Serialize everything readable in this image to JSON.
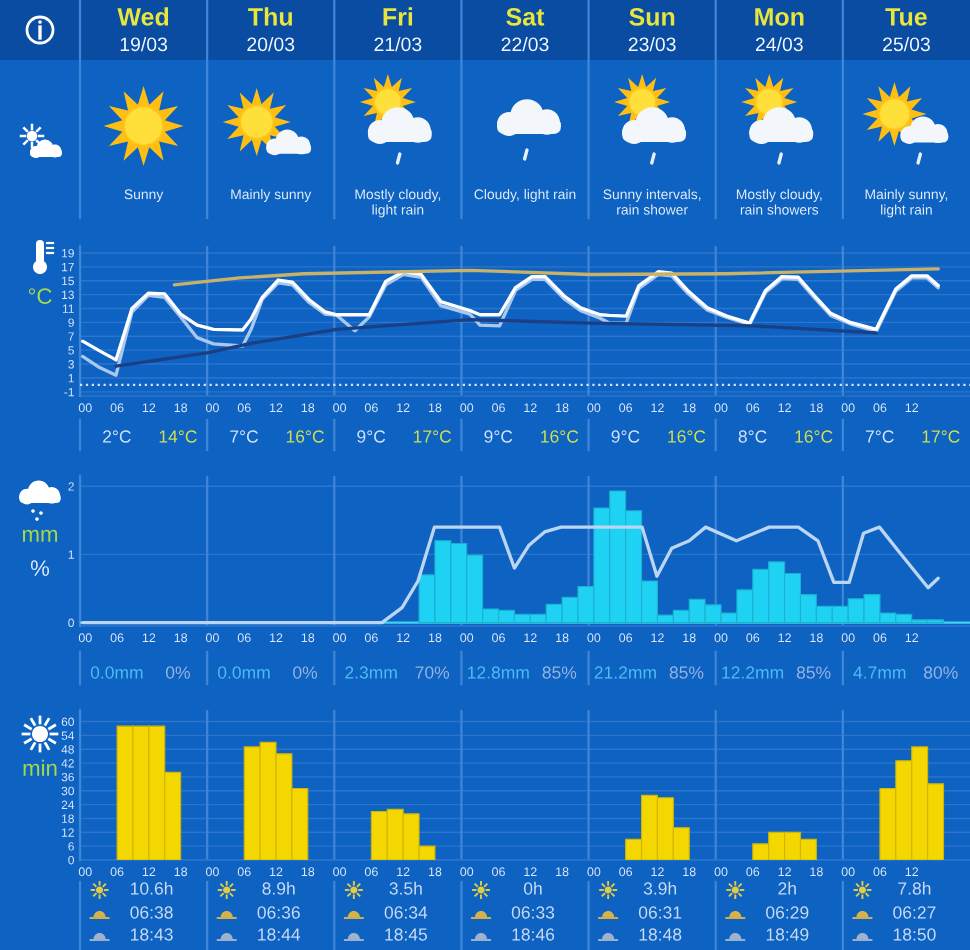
{
  "chart_data": [
    {
      "type": "other",
      "categories": [
        "Wed",
        "Thu",
        "Fri",
        "Sat",
        "Sun",
        "Mon",
        "Tue"
      ],
      "annotations": [
        "19/03",
        "20/03",
        "21/03",
        "22/03",
        "23/03",
        "24/03",
        "25/03",
        "Sunny",
        "Mainly sunny",
        "Mostly cloudy, light rain",
        "Cloudy, light rain",
        "Sunny intervals, rain shower",
        "Mostly cloudy, rain showers",
        "Mainly sunny, light rain"
      ]
    },
    {
      "type": "line",
      "ylabel": "°C",
      "x": [
        -0.5,
        2.7,
        5.8,
        8.8,
        11.9,
        15,
        18,
        21.1,
        24.2,
        29.7,
        31.3,
        33.4,
        36.4,
        39.1,
        42.2,
        45.3,
        47.5,
        50.9,
        53.6,
        56.7,
        60,
        63.4,
        67.1,
        72.6,
        74.5,
        78.2,
        81.2,
        84.3,
        86.8,
        90.4,
        93.5,
        97.2,
        98.9,
        102.1,
        104.5,
        108.2,
        110.7,
        113.7,
        117.4,
        121.1,
        125.4,
        128.4,
        131.5,
        134.6,
        137.7,
        140.7,
        144.4,
        149.3,
        153,
        156,
        158.9,
        161
      ],
      "series": [
        {
          "color": "#a9c8ef",
          "values": [
            4.1,
            2.5,
            1.4,
            10.5,
            12.9,
            12.6,
            9.8,
            6.8,
            5.9,
            5.6,
            8.0,
            12.3,
            14.7,
            14.4,
            11.9,
            10.2,
            10.0,
            7.8,
            9.8,
            14.4,
            15.9,
            15.5,
            11.4,
            10.2,
            8.6,
            8.5,
            13.6,
            15.2,
            15.2,
            12.4,
            10.7,
            9.6,
            8.9,
            8.9,
            13.9,
            15.9,
            15.7,
            13.2,
            10.8,
            9.7,
            8.7,
            13.3,
            15.3,
            15.2,
            12.5,
            10.0,
            8.8,
            7.7,
            13.5,
            15.4,
            15.4,
            14.0
          ]
        },
        {
          "color": "#ffffff",
          "values": [
            6.3,
            4.9,
            3.6,
            11.0,
            13.2,
            13.1,
            10.2,
            8.6,
            8.0,
            7.9,
            9.5,
            12.6,
            15.1,
            14.8,
            12.3,
            10.5,
            10.1,
            10.1,
            10.1,
            14.9,
            16.3,
            15.9,
            12.0,
            10.7,
            10.1,
            10.1,
            14.0,
            15.6,
            15.6,
            12.8,
            11.1,
            10.1,
            10.0,
            9.9,
            14.3,
            16.3,
            16.1,
            13.6,
            11.1,
            9.9,
            8.9,
            13.6,
            15.6,
            15.5,
            12.8,
            10.3,
            9.0,
            8.0,
            13.8,
            15.7,
            15.7,
            14.3
          ]
        },
        {
          "color": "#c8b26a",
          "x": [
            16.8,
            29.1,
            41.3,
            72.6,
            95.3,
            120.8,
            161
          ],
          "values": [
            14.4,
            15.4,
            16.0,
            16.5,
            15.9,
            16.0,
            16.7
          ]
        },
        {
          "color": "#1b3f85",
          "x": [
            5.8,
            23,
            31.5,
            47.5,
            72.6,
            95.3,
            126,
            149.3
          ],
          "values": [
            2.7,
            4.6,
            6.0,
            8.0,
            9.4,
            8.9,
            8.5,
            7.5
          ]
        }
      ],
      "xlim": [
        -1,
        167
      ],
      "ylim": [
        -1.6,
        20
      ],
      "xticks": [
        {
          "value": 0,
          "label": "00"
        },
        {
          "value": 6,
          "label": "06"
        },
        {
          "value": 12,
          "label": "12"
        },
        {
          "value": 18,
          "label": "18"
        },
        {
          "value": 24,
          "label": "00"
        },
        {
          "value": 30,
          "label": "06"
        },
        {
          "value": 36,
          "label": "12"
        },
        {
          "value": 42,
          "label": "18"
        },
        {
          "value": 48,
          "label": "00"
        },
        {
          "value": 54,
          "label": "06"
        },
        {
          "value": 60,
          "label": "12"
        },
        {
          "value": 66,
          "label": "18"
        },
        {
          "value": 72,
          "label": "00"
        },
        {
          "value": 78,
          "label": "06"
        },
        {
          "value": 84,
          "label": "12"
        },
        {
          "value": 90,
          "label": "18"
        },
        {
          "value": 96,
          "label": "00"
        },
        {
          "value": 102,
          "label": "06"
        },
        {
          "value": 108,
          "label": "12"
        },
        {
          "value": 114,
          "label": "18"
        },
        {
          "value": 120,
          "label": "00"
        },
        {
          "value": 126,
          "label": "06"
        },
        {
          "value": 132,
          "label": "12"
        },
        {
          "value": 138,
          "label": "18"
        },
        {
          "value": 144,
          "label": "00"
        },
        {
          "value": 150,
          "label": "06"
        },
        {
          "value": 156,
          "label": "12"
        }
      ],
      "yticks": [
        -1,
        1,
        3,
        5,
        7,
        9,
        11,
        13,
        15,
        17,
        19
      ],
      "grid": "y",
      "ref_lines": [
        {
          "axis": "y",
          "value": 0,
          "color": "#d6e4fa",
          "line_style": "dotted"
        },
        {
          "axis": "x",
          "value": -1,
          "color": "#3f86d6"
        },
        {
          "axis": "x",
          "value": 23,
          "color": "#3f86d6"
        },
        {
          "axis": "x",
          "value": 47,
          "color": "#3f86d6"
        },
        {
          "axis": "x",
          "value": 71,
          "color": "#3f86d6"
        },
        {
          "axis": "x",
          "value": 95,
          "color": "#3f86d6"
        },
        {
          "axis": "x",
          "value": 119,
          "color": "#3f86d6"
        },
        {
          "axis": "x",
          "value": 143,
          "color": "#3f86d6"
        }
      ],
      "annotations": [
        "2°C",
        "14°C",
        "7°C",
        "16°C",
        "9°C",
        "17°C",
        "9°C",
        "16°C",
        "9°C",
        "16°C",
        "8°C",
        "16°C",
        "7°C",
        "17°C"
      ]
    },
    {
      "type": "bar",
      "ylabel": "mm",
      "y2label": "%",
      "x": [
        64.5,
        67.5,
        70.5,
        73.5,
        76.5,
        79.5,
        82.5,
        85.5,
        88.5,
        91.5,
        94.5,
        97.5,
        100.5,
        103.5,
        106.5,
        109.5,
        112.5,
        115.5,
        118.5,
        121.5,
        124.5,
        127.5,
        130.5,
        133.5,
        136.5,
        139.5,
        142.5,
        145.5,
        148.5,
        151.5,
        154.5,
        157.5,
        160.5
      ],
      "series": [
        {
          "type": "bar",
          "color": "#1fd2f3",
          "values": [
            0.7,
            1.2,
            1.16,
            0.99,
            0.2,
            0.18,
            0.12,
            0.12,
            0.27,
            0.37,
            0.53,
            1.68,
            1.93,
            1.64,
            0.61,
            0.11,
            0.18,
            0.34,
            0.26,
            0.14,
            0.48,
            0.78,
            0.89,
            0.72,
            0.41,
            0.24,
            0.24,
            0.35,
            0.41,
            0.14,
            0.12,
            0.04,
            0.04
          ]
        },
        {
          "type": "line",
          "color": "#bcd5f3",
          "x": [
            -0.5,
            56,
            59.8,
            62.8,
            65.9,
            78.2,
            81,
            83.7,
            86.7,
            89.8,
            105.1,
            107.9,
            110.7,
            114,
            117.1,
            122.9,
            129.1,
            134.6,
            138.3,
            141.3,
            144.2,
            146.9,
            149.9,
            153.6,
            159.1,
            161
          ],
          "values": [
            0,
            0,
            0.22,
            0.61,
            1.4,
            1.4,
            0.8,
            1.13,
            1.33,
            1.4,
            1.4,
            0.68,
            1.09,
            1.2,
            1.4,
            1.2,
            1.4,
            1.4,
            1.2,
            0.59,
            0.59,
            1.31,
            1.4,
            1.04,
            0.51,
            0.65
          ]
        }
      ],
      "xlim": [
        -1,
        167
      ],
      "ylim": [
        -0.05,
        2.15
      ],
      "xticks": [
        {
          "value": 0,
          "label": "00"
        },
        {
          "value": 6,
          "label": "06"
        },
        {
          "value": 12,
          "label": "12"
        },
        {
          "value": 18,
          "label": "18"
        },
        {
          "value": 24,
          "label": "00"
        },
        {
          "value": 30,
          "label": "06"
        },
        {
          "value": 36,
          "label": "12"
        },
        {
          "value": 42,
          "label": "18"
        },
        {
          "value": 48,
          "label": "00"
        },
        {
          "value": 54,
          "label": "06"
        },
        {
          "value": 60,
          "label": "12"
        },
        {
          "value": 66,
          "label": "18"
        },
        {
          "value": 72,
          "label": "00"
        },
        {
          "value": 78,
          "label": "06"
        },
        {
          "value": 84,
          "label": "12"
        },
        {
          "value": 90,
          "label": "18"
        },
        {
          "value": 96,
          "label": "00"
        },
        {
          "value": 102,
          "label": "06"
        },
        {
          "value": 108,
          "label": "12"
        },
        {
          "value": 114,
          "label": "18"
        },
        {
          "value": 120,
          "label": "00"
        },
        {
          "value": 126,
          "label": "06"
        },
        {
          "value": 132,
          "label": "12"
        },
        {
          "value": 138,
          "label": "18"
        },
        {
          "value": 144,
          "label": "00"
        },
        {
          "value": 150,
          "label": "06"
        },
        {
          "value": 156,
          "label": "12"
        }
      ],
      "yticks": [
        0,
        1,
        2
      ],
      "grid": "y",
      "ref_lines": [
        {
          "axis": "y",
          "value": 0,
          "color": "#3fd3f2"
        },
        {
          "axis": "x",
          "value": -1,
          "color": "#3f86d6"
        },
        {
          "axis": "x",
          "value": 23,
          "color": "#3f86d6"
        },
        {
          "axis": "x",
          "value": 47,
          "color": "#3f86d6"
        },
        {
          "axis": "x",
          "value": 71,
          "color": "#3f86d6"
        },
        {
          "axis": "x",
          "value": 95,
          "color": "#3f86d6"
        },
        {
          "axis": "x",
          "value": 119,
          "color": "#3f86d6"
        },
        {
          "axis": "x",
          "value": 143,
          "color": "#3f86d6"
        }
      ],
      "annotations": [
        "0.0mm",
        "0%",
        "0.0mm",
        "0%",
        "2.3mm",
        "70%",
        "12.8mm",
        "85%",
        "21.2mm",
        "85%",
        "12.2mm",
        "85%",
        "4.7mm",
        "80%"
      ]
    },
    {
      "type": "bar",
      "ylabel": "min",
      "x": [
        7.5,
        10.5,
        13.5,
        16.5,
        31.5,
        34.5,
        37.5,
        40.5,
        55.5,
        58.5,
        61.5,
        64.5,
        103.5,
        106.5,
        109.5,
        112.5,
        127.5,
        130.5,
        133.5,
        136.5,
        151.5,
        154.5,
        157.5,
        160.5
      ],
      "values": [
        58,
        58,
        58,
        38,
        49,
        51,
        46,
        31,
        21,
        22,
        20,
        6,
        9,
        28,
        27,
        14,
        7,
        12,
        12,
        9,
        31,
        43,
        49,
        33
      ],
      "color": "#f4d600",
      "xlim": [
        -1,
        167
      ],
      "ylim": [
        0,
        65
      ],
      "xticks": [
        {
          "value": 0,
          "label": "00"
        },
        {
          "value": 6,
          "label": "06"
        },
        {
          "value": 12,
          "label": "12"
        },
        {
          "value": 18,
          "label": "18"
        },
        {
          "value": 24,
          "label": "00"
        },
        {
          "value": 30,
          "label": "06"
        },
        {
          "value": 36,
          "label": "12"
        },
        {
          "value": 42,
          "label": "18"
        },
        {
          "value": 48,
          "label": "00"
        },
        {
          "value": 54,
          "label": "06"
        },
        {
          "value": 60,
          "label": "12"
        },
        {
          "value": 66,
          "label": "18"
        },
        {
          "value": 72,
          "label": "00"
        },
        {
          "value": 78,
          "label": "06"
        },
        {
          "value": 84,
          "label": "12"
        },
        {
          "value": 90,
          "label": "18"
        },
        {
          "value": 96,
          "label": "00"
        },
        {
          "value": 102,
          "label": "06"
        },
        {
          "value": 108,
          "label": "12"
        },
        {
          "value": 114,
          "label": "18"
        },
        {
          "value": 120,
          "label": "00"
        },
        {
          "value": 126,
          "label": "06"
        },
        {
          "value": 132,
          "label": "12"
        },
        {
          "value": 138,
          "label": "18"
        },
        {
          "value": 144,
          "label": "00"
        },
        {
          "value": 150,
          "label": "06"
        },
        {
          "value": 156,
          "label": "12"
        }
      ],
      "yticks": [
        0,
        6,
        12,
        18,
        24,
        30,
        36,
        42,
        48,
        54,
        60
      ],
      "grid": "y",
      "ref_lines": [
        {
          "axis": "x",
          "value": -1,
          "color": "#3f86d6"
        },
        {
          "axis": "x",
          "value": 23,
          "color": "#3f86d6"
        },
        {
          "axis": "x",
          "value": 47,
          "color": "#3f86d6"
        },
        {
          "axis": "x",
          "value": 71,
          "color": "#3f86d6"
        },
        {
          "axis": "x",
          "value": 95,
          "color": "#3f86d6"
        },
        {
          "axis": "x",
          "value": 119,
          "color": "#3f86d6"
        },
        {
          "axis": "x",
          "value": 143,
          "color": "#3f86d6"
        }
      ],
      "annotations": [
        "10.6h",
        "06:38",
        "18:43",
        "8.9h",
        "06:36",
        "18:44",
        "3.5h",
        "06:34",
        "18:45",
        "0h",
        "06:33",
        "18:46",
        "3.9h",
        "06:31",
        "18:48",
        "2h",
        "06:29",
        "18:49",
        "7.8h",
        "06:27",
        "18:50"
      ]
    }
  ]
}
